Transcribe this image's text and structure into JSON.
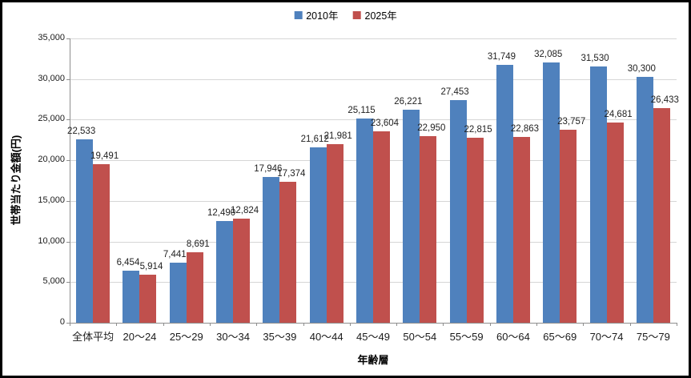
{
  "chart_data": {
    "type": "bar",
    "title": "",
    "categories": [
      "全体平均",
      "20〜24",
      "25〜29",
      "30〜34",
      "35〜39",
      "40〜44",
      "45〜49",
      "50〜54",
      "55〜59",
      "60〜64",
      "65〜69",
      "70〜74",
      "75〜79"
    ],
    "series": [
      {
        "name": "2010年",
        "color": "#4F81BD",
        "values": [
          22533,
          6454,
          7441,
          12490,
          17946,
          21612,
          25115,
          26221,
          27453,
          31749,
          32085,
          31530,
          30300
        ]
      },
      {
        "name": "2025年",
        "color": "#C0504D",
        "values": [
          19491,
          5914,
          8691,
          12824,
          17374,
          21981,
          23604,
          22950,
          22815,
          22863,
          23757,
          24681,
          26433
        ]
      }
    ],
    "xlabel": "年齢層",
    "ylabel": "世帯当たり金額(円)",
    "ylim": [
      0,
      35000
    ],
    "ytick_interval": 5000,
    "ytick_labels": [
      "0",
      "5,000",
      "10,000",
      "15,000",
      "20,000",
      "25,000",
      "30,000",
      "35,000"
    ],
    "grid": true,
    "legend_position": "top",
    "colors": {
      "series_2010": "#4F81BD",
      "series_2025": "#C0504D",
      "gridline": "#d6d6d6",
      "axis": "#8e8e8e",
      "text": "#1a1a1a",
      "frame_border": "#000000",
      "background": "#ffffff"
    }
  }
}
